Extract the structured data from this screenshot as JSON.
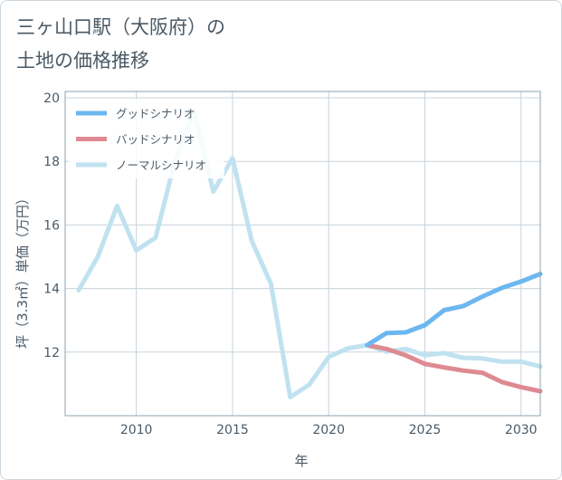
{
  "title": {
    "line1": "三ヶ山口駅（大阪府）の",
    "line2": "土地の価格推移"
  },
  "chart_data": {
    "type": "line",
    "xlabel": "年",
    "ylabel": "坪（3.3㎡）単価（万円）",
    "xlim": [
      2006.3,
      2031
    ],
    "ylim": [
      10,
      20.2
    ],
    "xticks": [
      2010,
      2015,
      2020,
      2025,
      2030
    ],
    "yticks": [
      12,
      14,
      16,
      18,
      20
    ],
    "grid": true,
    "legend_position": "top-left",
    "series": [
      {
        "name": "グッドシナリオ",
        "color": "#6cb7f0",
        "x": [
          2022,
          2023,
          2024,
          2025,
          2026,
          2027,
          2028,
          2029,
          2030,
          2031
        ],
        "y": [
          12.22,
          12.6,
          12.62,
          12.85,
          13.32,
          13.45,
          13.75,
          14.02,
          14.22,
          14.46
        ]
      },
      {
        "name": "バッドシナリオ",
        "color": "#de8a92",
        "x": [
          2022,
          2023,
          2024,
          2025,
          2026,
          2027,
          2028,
          2029,
          2030,
          2031
        ],
        "y": [
          12.22,
          12.1,
          11.9,
          11.63,
          11.52,
          11.42,
          11.35,
          11.06,
          10.9,
          10.77
        ]
      },
      {
        "name": "ノーマルシナリオ",
        "color": "#c0e2f0",
        "x": [
          2007,
          2008,
          2009,
          2010,
          2011,
          2012,
          2013,
          2014,
          2015,
          2016,
          2017,
          2018,
          2019,
          2020,
          2021,
          2022,
          2023,
          2024,
          2025,
          2026,
          2027,
          2028,
          2029,
          2030,
          2031
        ],
        "y": [
          13.95,
          15.0,
          16.6,
          15.2,
          15.6,
          18.0,
          19.6,
          17.05,
          18.1,
          15.5,
          14.15,
          10.58,
          10.98,
          11.85,
          12.12,
          12.22,
          12.02,
          12.1,
          11.9,
          11.97,
          11.82,
          11.8,
          11.7,
          11.7,
          11.55
        ]
      }
    ]
  }
}
